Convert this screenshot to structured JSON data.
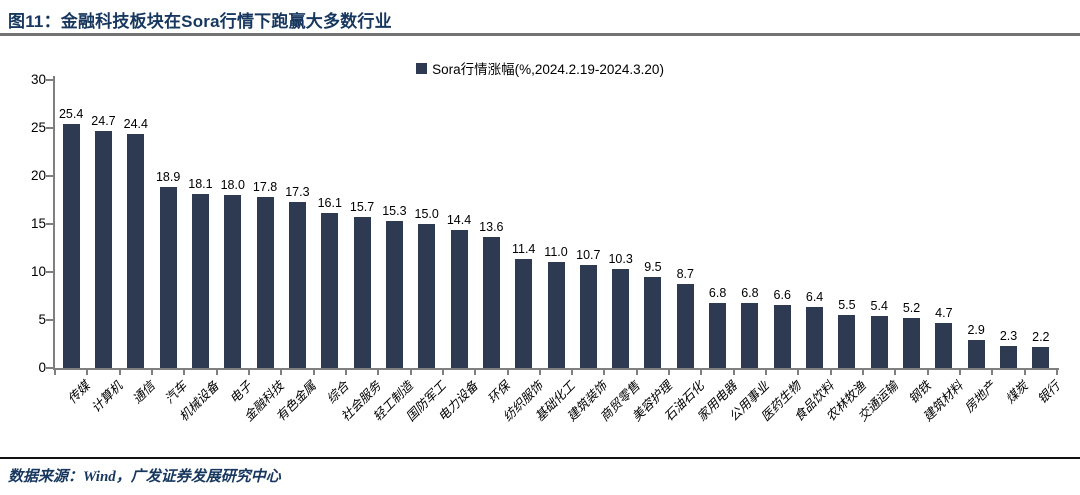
{
  "header": {
    "title": "图11：金融科技板块在Sora行情下跑赢大多数行业"
  },
  "legend": {
    "label": "Sora行情涨幅(%,2024.2.19-2024.3.20)"
  },
  "footer": {
    "source": "数据来源：Wind，广发证券发展研究中心"
  },
  "colors": {
    "bar": "#2d3a52",
    "title_text": "#17375e",
    "footer_text": "#17375e",
    "axis": "#7f7f7f",
    "label_text": "#000000"
  },
  "chart_data": {
    "type": "bar",
    "title": "Sora行情涨幅(%,2024.2.19-2024.3.20)",
    "legend_position": "top-center",
    "grid": false,
    "xlabel": "",
    "ylabel": "",
    "ylim": [
      0,
      30
    ],
    "yticks": [
      0,
      5,
      10,
      15,
      20,
      25,
      30
    ],
    "bar_color": "#2d3a52",
    "categories": [
      "传媒",
      "计算机",
      "通信",
      "汽车",
      "机械设备",
      "电子",
      "金融科技",
      "有色金属",
      "综合",
      "社会服务",
      "轻工制造",
      "国防军工",
      "电力设备",
      "环保",
      "纺织服饰",
      "基础化工",
      "建筑装饰",
      "商贸零售",
      "美容护理",
      "石油石化",
      "家用电器",
      "公用事业",
      "医药生物",
      "食品饮料",
      "农林牧渔",
      "交通运输",
      "钢铁",
      "建筑材料",
      "房地产",
      "煤炭",
      "银行"
    ],
    "values": [
      25.4,
      24.7,
      24.4,
      18.9,
      18.1,
      18.0,
      17.8,
      17.3,
      16.1,
      15.7,
      15.3,
      15.0,
      14.4,
      13.6,
      11.4,
      11.0,
      10.7,
      10.3,
      9.5,
      8.7,
      6.8,
      6.8,
      6.6,
      6.4,
      5.5,
      5.4,
      5.2,
      4.7,
      2.9,
      2.3,
      2.2
    ]
  }
}
